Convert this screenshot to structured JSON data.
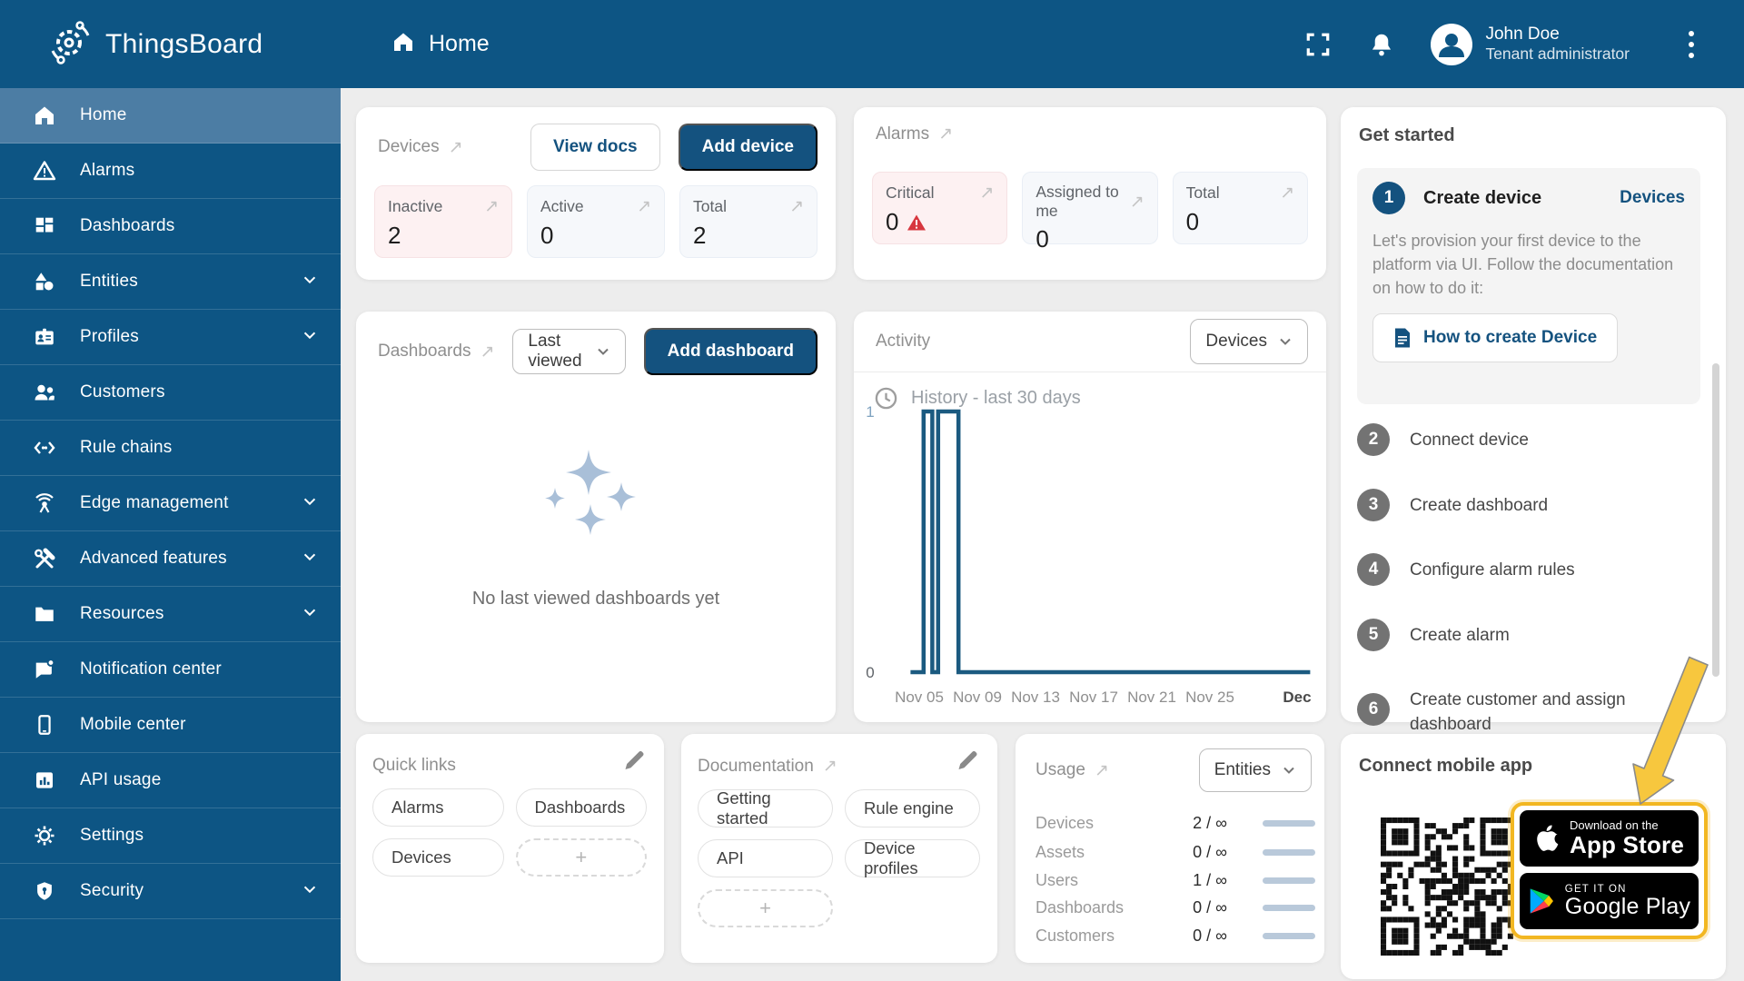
{
  "topbar": {
    "logo_text": "ThingsBoard",
    "breadcrumb": "Home",
    "user": {
      "name": "John Doe",
      "role": "Tenant administrator"
    }
  },
  "sidebar": {
    "items": [
      {
        "label": "Home",
        "icon": "home-icon",
        "active": true,
        "expandable": false
      },
      {
        "label": "Alarms",
        "icon": "alarm-icon",
        "active": false,
        "expandable": false
      },
      {
        "label": "Dashboards",
        "icon": "dashboards-icon",
        "active": false,
        "expandable": false
      },
      {
        "label": "Entities",
        "icon": "entities-icon",
        "active": false,
        "expandable": true
      },
      {
        "label": "Profiles",
        "icon": "profiles-icon",
        "active": false,
        "expandable": true
      },
      {
        "label": "Customers",
        "icon": "customers-icon",
        "active": false,
        "expandable": false
      },
      {
        "label": "Rule chains",
        "icon": "rule-chains-icon",
        "active": false,
        "expandable": false
      },
      {
        "label": "Edge management",
        "icon": "edge-icon",
        "active": false,
        "expandable": true
      },
      {
        "label": "Advanced features",
        "icon": "tools-icon",
        "active": false,
        "expandable": true
      },
      {
        "label": "Resources",
        "icon": "folder-icon",
        "active": false,
        "expandable": true
      },
      {
        "label": "Notification center",
        "icon": "notification-icon",
        "active": false,
        "expandable": false
      },
      {
        "label": "Mobile center",
        "icon": "mobile-icon",
        "active": false,
        "expandable": false
      },
      {
        "label": "API usage",
        "icon": "api-usage-icon",
        "active": false,
        "expandable": false
      },
      {
        "label": "Settings",
        "icon": "gear-icon",
        "active": false,
        "expandable": false
      },
      {
        "label": "Security",
        "icon": "shield-icon",
        "active": false,
        "expandable": true
      }
    ]
  },
  "cards": {
    "devices": {
      "title": "Devices",
      "view_docs_label": "View docs",
      "add_label": "Add device",
      "tiles": [
        {
          "label": "Inactive",
          "value": "2"
        },
        {
          "label": "Active",
          "value": "0"
        },
        {
          "label": "Total",
          "value": "2"
        }
      ]
    },
    "alarms": {
      "title": "Alarms",
      "tiles": [
        {
          "label": "Critical",
          "value": "0"
        },
        {
          "label": "Assigned to me",
          "value": "0"
        },
        {
          "label": "Total",
          "value": "0"
        }
      ]
    },
    "dashboards": {
      "title": "Dashboards",
      "filter": "Last viewed",
      "add_label": "Add dashboard",
      "empty_text": "No last viewed dashboards yet"
    },
    "activity": {
      "title": "Activity",
      "filter": "Devices",
      "history_label": "History - last 30 days"
    },
    "get_started": {
      "title": "Get started",
      "step1": {
        "num": "1",
        "title": "Create device",
        "link": "Devices",
        "description": "Let's provision your first device to the platform via UI. Follow the documentation on how to do it:",
        "button": "How to create Device"
      },
      "steps": [
        {
          "num": "2",
          "label": "Connect device"
        },
        {
          "num": "3",
          "label": "Create dashboard"
        },
        {
          "num": "4",
          "label": "Configure alarm rules"
        },
        {
          "num": "5",
          "label": "Create alarm"
        },
        {
          "num": "6",
          "label": "Create customer and assign dashboard"
        }
      ]
    },
    "quick_links": {
      "title": "Quick links",
      "links": [
        "Alarms",
        "Dashboards",
        "Devices"
      ],
      "add": "+"
    },
    "documentation": {
      "title": "Documentation",
      "links": [
        "Getting started",
        "Rule engine",
        "API",
        "Device profiles"
      ],
      "add": "+"
    },
    "usage": {
      "title": "Usage",
      "filter": "Entities",
      "rows": [
        {
          "label": "Devices",
          "value": "2 / ∞"
        },
        {
          "label": "Assets",
          "value": "0 / ∞"
        },
        {
          "label": "Users",
          "value": "1 / ∞"
        },
        {
          "label": "Dashboards",
          "value": "0 / ∞"
        },
        {
          "label": "Customers",
          "value": "0 / ∞"
        }
      ]
    },
    "connect": {
      "title": "Connect mobile app",
      "appstore": {
        "line1": "Download on the",
        "line2": "App Store"
      },
      "googleplay": {
        "line1": "GET IT ON",
        "line2": "Google Play"
      }
    }
  },
  "chart_data": {
    "type": "line",
    "title": "History - last 30 days",
    "xlabel": "",
    "ylabel": "",
    "ylim": [
      0,
      1
    ],
    "grid": false,
    "legend": "none",
    "x_ticks": [
      {
        "label": "Nov 05",
        "day": 5
      },
      {
        "label": "Nov 09",
        "day": 9
      },
      {
        "label": "Nov 13",
        "day": 13
      },
      {
        "label": "Nov 17",
        "day": 17
      },
      {
        "label": "Nov 21",
        "day": 21
      },
      {
        "label": "Nov 25",
        "day": 25
      },
      {
        "label": "Dec",
        "day": 31,
        "bold": true
      }
    ],
    "y_ticks": [
      {
        "label": "0",
        "value": 0
      },
      {
        "label": "1",
        "value": 1
      }
    ],
    "series": [
      {
        "name": "Devices",
        "color": "#1b5a80",
        "step": true,
        "points_day_value": [
          [
            4.4,
            0
          ],
          [
            5.3,
            0
          ],
          [
            5.3,
            1
          ],
          [
            5.9,
            1
          ],
          [
            5.9,
            0
          ],
          [
            6.3,
            0
          ],
          [
            6.3,
            1
          ],
          [
            7.7,
            1
          ],
          [
            7.7,
            0
          ],
          [
            31.9,
            0
          ]
        ]
      }
    ]
  },
  "colors": {
    "primary": "#14527f",
    "topbar": "#0d5584",
    "active_item": "#4c7da4",
    "critical_red": "#d7373f",
    "tile_red_bg": "#fdf1f2",
    "tile_neutral_bg": "#f6f8fb",
    "usage_bar": "#b9c9da",
    "highlight_yellow": "#f2b722",
    "chart_line": "#1b5a80",
    "sparkle": "#a9bfd8"
  }
}
